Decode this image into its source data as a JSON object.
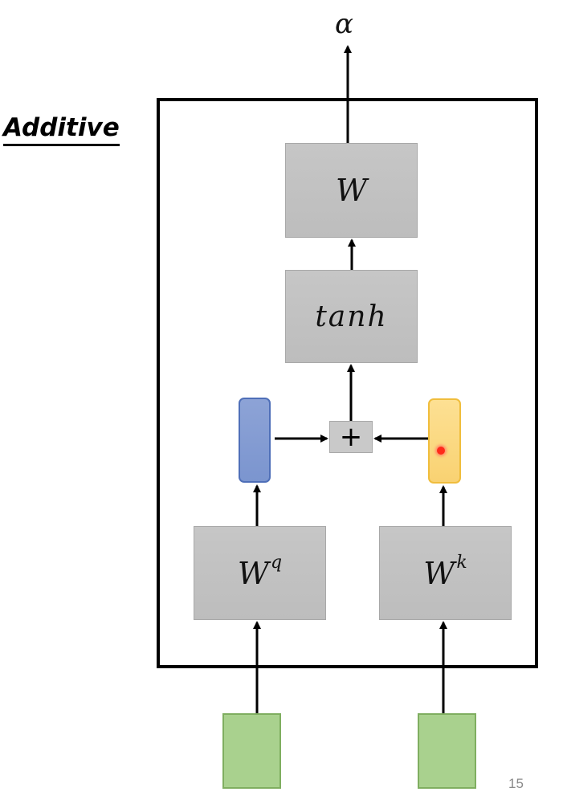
{
  "diagram": {
    "title": "Additive",
    "output_label": "α",
    "nodes": {
      "w": "W",
      "tanh": "tanh",
      "plus": "+",
      "wq_base": "W",
      "wq_sup": "q",
      "wk_base": "W",
      "wk_sup": "k"
    },
    "vectors": {
      "query_color": "#7b95cf",
      "key_color": "#f9d272",
      "input_color": "#a9d18e"
    },
    "page_number": "15"
  }
}
